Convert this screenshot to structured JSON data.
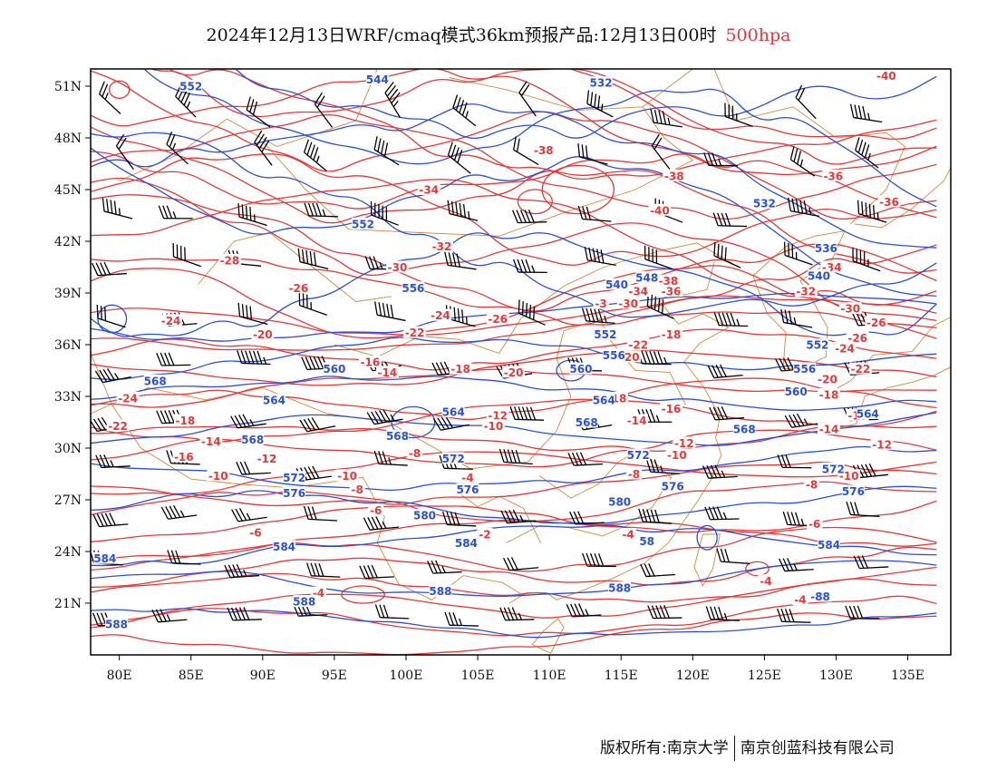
{
  "title": {
    "main": "2024年12月13日WRF/cmaq模式36km预报产品:12月13日00时",
    "level": "500hpa"
  },
  "footer": {
    "left": "版权所有:南京大学",
    "right": "南京创蓝科技有限公司"
  },
  "colors": {
    "temperature": "#e23a3a",
    "geopotential": "#2b4fd6",
    "wind": "#000000",
    "coast": "#d08a3a",
    "frame": "#000000"
  },
  "map": {
    "lon_range": [
      78,
      138
    ],
    "lat_range": [
      18,
      52
    ],
    "lon_ticks": [
      "80E",
      "85E",
      "90E",
      "95E",
      "100E",
      "105E",
      "110E",
      "115E",
      "120E",
      "125E",
      "130E",
      "135E"
    ],
    "lat_ticks": [
      "21N",
      "24N",
      "27N",
      "30N",
      "33N",
      "36N",
      "39N",
      "42N",
      "45N",
      "48N",
      "51N"
    ]
  },
  "contours": {
    "geopotential_labels": [
      {
        "text": "552",
        "lon": 85,
        "lat": 51
      },
      {
        "text": "544",
        "lon": 98,
        "lat": 51.4
      },
      {
        "text": "532",
        "lon": 113.6,
        "lat": 51.2
      },
      {
        "text": "552",
        "lon": 97,
        "lat": 43
      },
      {
        "text": "532",
        "lon": 125,
        "lat": 44.2
      },
      {
        "text": "536",
        "lon": 129.3,
        "lat": 41.6
      },
      {
        "text": "556",
        "lon": 100.5,
        "lat": 39.3
      },
      {
        "text": "540",
        "lon": 114.7,
        "lat": 39.5
      },
      {
        "text": "548",
        "lon": 116.8,
        "lat": 39.9
      },
      {
        "text": "540",
        "lon": 128.8,
        "lat": 40
      },
      {
        "text": "552",
        "lon": 113.9,
        "lat": 36.6
      },
      {
        "text": "552",
        "lon": 128.7,
        "lat": 36
      },
      {
        "text": "556",
        "lon": 114.5,
        "lat": 35.4
      },
      {
        "text": "560",
        "lon": 95,
        "lat": 34.6
      },
      {
        "text": "560",
        "lon": 112.2,
        "lat": 34.6
      },
      {
        "text": "556",
        "lon": 127.8,
        "lat": 34.6
      },
      {
        "text": "568",
        "lon": 82.5,
        "lat": 33.9
      },
      {
        "text": "560",
        "lon": 127.2,
        "lat": 33.3
      },
      {
        "text": "564",
        "lon": 90.8,
        "lat": 32.8
      },
      {
        "text": "564",
        "lon": 113.8,
        "lat": 32.8
      },
      {
        "text": "564",
        "lon": 103.3,
        "lat": 32.1
      },
      {
        "text": "564",
        "lon": 132.2,
        "lat": 32
      },
      {
        "text": "568",
        "lon": 112.6,
        "lat": 31.5
      },
      {
        "text": "568",
        "lon": 123.6,
        "lat": 31.1
      },
      {
        "text": "568",
        "lon": 89.3,
        "lat": 30.5
      },
      {
        "text": "568",
        "lon": 99.4,
        "lat": 30.7
      },
      {
        "text": "572",
        "lon": 103.3,
        "lat": 29.4
      },
      {
        "text": "572",
        "lon": 116.2,
        "lat": 29.6
      },
      {
        "text": "572",
        "lon": 92.2,
        "lat": 28.3
      },
      {
        "text": "572",
        "lon": 129.8,
        "lat": 28.8
      },
      {
        "text": "576",
        "lon": 92.2,
        "lat": 27.4
      },
      {
        "text": "576",
        "lon": 104.3,
        "lat": 27.6
      },
      {
        "text": "576",
        "lon": 118.6,
        "lat": 27.8
      },
      {
        "text": "576",
        "lon": 131.2,
        "lat": 27.5
      },
      {
        "text": "580",
        "lon": 114.9,
        "lat": 26.9
      },
      {
        "text": "580",
        "lon": 101.3,
        "lat": 26.1
      },
      {
        "text": "584",
        "lon": 91.5,
        "lat": 24.3
      },
      {
        "text": "584",
        "lon": 104.2,
        "lat": 24.5
      },
      {
        "text": "584",
        "lon": 79,
        "lat": 23.6
      },
      {
        "text": "58",
        "lon": 116.8,
        "lat": 24.6
      },
      {
        "text": "584",
        "lon": 129.5,
        "lat": 24.4
      },
      {
        "text": "588",
        "lon": 92.9,
        "lat": 21.1
      },
      {
        "text": "588",
        "lon": 102.4,
        "lat": 21.7
      },
      {
        "text": "588",
        "lon": 114.9,
        "lat": 21.9
      },
      {
        "text": "588",
        "lon": 79.8,
        "lat": 19.8
      },
      {
        "text": "-88",
        "lon": 128.9,
        "lat": 21.4
      }
    ],
    "temperature_labels": [
      {
        "text": "-40",
        "lon": 133.5,
        "lat": 51.6
      },
      {
        "text": "-38",
        "lon": 109.6,
        "lat": 47.3
      },
      {
        "text": "-38",
        "lon": 118.7,
        "lat": 45.8
      },
      {
        "text": "-36",
        "lon": 129.8,
        "lat": 45.8
      },
      {
        "text": "-34",
        "lon": 101.6,
        "lat": 45
      },
      {
        "text": "-36",
        "lon": 133.7,
        "lat": 44.3
      },
      {
        "text": "-40",
        "lon": 117.7,
        "lat": 43.8
      },
      {
        "text": "-32",
        "lon": 102.5,
        "lat": 41.7
      },
      {
        "text": "-28",
        "lon": 87.7,
        "lat": 40.9
      },
      {
        "text": "-30",
        "lon": 99.4,
        "lat": 40.5
      },
      {
        "text": "-34",
        "lon": 129.7,
        "lat": 40.5
      },
      {
        "text": "-26",
        "lon": 92.5,
        "lat": 39.3
      },
      {
        "text": "-34",
        "lon": 116.2,
        "lat": 39.1
      },
      {
        "text": "-38",
        "lon": 118.3,
        "lat": 39.7
      },
      {
        "text": "-36",
        "lon": 118.5,
        "lat": 39.1
      },
      {
        "text": "-32",
        "lon": 127.9,
        "lat": 39.1
      },
      {
        "text": "-3",
        "lon": 113.6,
        "lat": 38.4
      },
      {
        "text": "-30",
        "lon": 115.5,
        "lat": 38.4
      },
      {
        "text": "-30",
        "lon": 131,
        "lat": 38.1
      },
      {
        "text": "-24",
        "lon": 83.6,
        "lat": 37.4
      },
      {
        "text": "-24",
        "lon": 102.4,
        "lat": 37.7
      },
      {
        "text": "-26",
        "lon": 106.4,
        "lat": 37.5
      },
      {
        "text": "-26",
        "lon": 132.8,
        "lat": 37.3
      },
      {
        "text": "-20",
        "lon": 90,
        "lat": 36.6
      },
      {
        "text": "-22",
        "lon": 100.6,
        "lat": 36.7
      },
      {
        "text": "-18",
        "lon": 118.5,
        "lat": 36.6
      },
      {
        "text": "-22",
        "lon": 116.2,
        "lat": 36
      },
      {
        "text": "-26",
        "lon": 131.5,
        "lat": 36.4
      },
      {
        "text": "-24",
        "lon": 130.6,
        "lat": 35.8
      },
      {
        "text": "-16",
        "lon": 97.5,
        "lat": 35
      },
      {
        "text": "-20",
        "lon": 115.6,
        "lat": 35.3
      },
      {
        "text": "-14",
        "lon": 98.7,
        "lat": 34.4
      },
      {
        "text": "-18",
        "lon": 103.8,
        "lat": 34.6
      },
      {
        "text": "-20",
        "lon": 107.5,
        "lat": 34.4
      },
      {
        "text": "-22",
        "lon": 131.7,
        "lat": 34.6
      },
      {
        "text": "-20",
        "lon": 129.4,
        "lat": 34
      },
      {
        "text": "-24",
        "lon": 80.6,
        "lat": 32.9
      },
      {
        "text": "-18",
        "lon": 114.7,
        "lat": 32.9
      },
      {
        "text": "-18",
        "lon": 129.5,
        "lat": 33.1
      },
      {
        "text": "-16",
        "lon": 118.5,
        "lat": 32.3
      },
      {
        "text": "-18",
        "lon": 84.6,
        "lat": 31.6
      },
      {
        "text": "-12",
        "lon": 106.4,
        "lat": 31.9
      },
      {
        "text": "-16",
        "lon": 131.5,
        "lat": 31.9
      },
      {
        "text": "-22",
        "lon": 79.9,
        "lat": 31.3
      },
      {
        "text": "-14",
        "lon": 116.1,
        "lat": 31.6
      },
      {
        "text": "-10",
        "lon": 106.1,
        "lat": 31.3
      },
      {
        "text": "-14",
        "lon": 129.5,
        "lat": 31.1
      },
      {
        "text": "-14",
        "lon": 86.4,
        "lat": 30.4
      },
      {
        "text": "-12",
        "lon": 119.4,
        "lat": 30.3
      },
      {
        "text": "-12",
        "lon": 133.2,
        "lat": 30.2
      },
      {
        "text": "-16",
        "lon": 84.5,
        "lat": 29.5
      },
      {
        "text": "-12",
        "lon": 90.3,
        "lat": 29.4
      },
      {
        "text": "-8",
        "lon": 100.6,
        "lat": 29.7
      },
      {
        "text": "-10",
        "lon": 118.9,
        "lat": 29.6
      },
      {
        "text": "-8",
        "lon": 115.9,
        "lat": 28.5
      },
      {
        "text": "-10",
        "lon": 86.9,
        "lat": 28.4
      },
      {
        "text": "-10",
        "lon": 95.9,
        "lat": 28.4
      },
      {
        "text": "-4",
        "lon": 104.3,
        "lat": 28.3
      },
      {
        "text": "-10",
        "lon": 130.9,
        "lat": 28.4
      },
      {
        "text": "-8",
        "lon": 96.6,
        "lat": 27.6
      },
      {
        "text": "-8",
        "lon": 128.3,
        "lat": 27.9
      },
      {
        "text": "-6",
        "lon": 97.9,
        "lat": 26.4
      },
      {
        "text": "-6",
        "lon": 89.5,
        "lat": 25.1
      },
      {
        "text": "-2",
        "lon": 105.5,
        "lat": 25
      },
      {
        "text": "-4",
        "lon": 115.5,
        "lat": 25
      },
      {
        "text": "-6",
        "lon": 128.5,
        "lat": 25.6
      },
      {
        "text": "-4",
        "lon": 125.1,
        "lat": 22.3
      },
      {
        "text": "-4",
        "lon": 93.9,
        "lat": 21.6
      },
      {
        "text": "-4",
        "lon": 127.5,
        "lat": 21.2
      }
    ]
  }
}
